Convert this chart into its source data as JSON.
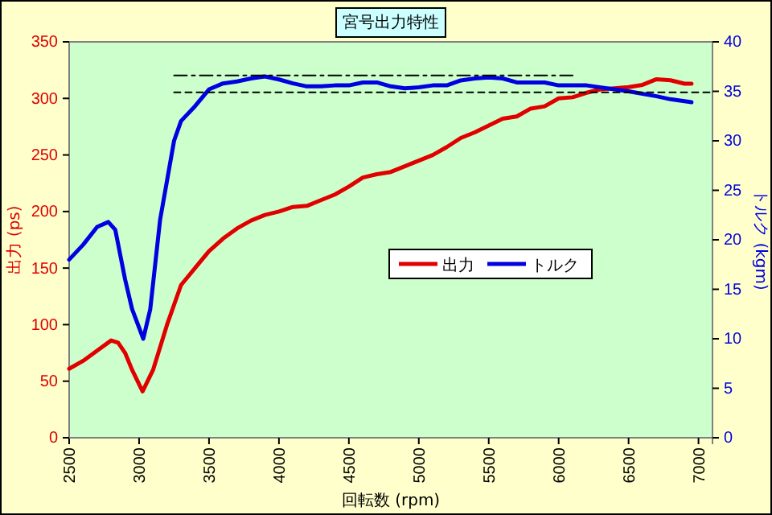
{
  "chart_data": {
    "type": "line",
    "title": "宮号出力特性",
    "xlabel": "回転数 (rpm)",
    "ylabel": "出力 (ps)",
    "y2label": "トルク (kgm)",
    "xlim": [
      2500,
      7100
    ],
    "xticks": [
      2500,
      3000,
      3500,
      4000,
      4500,
      5000,
      5500,
      6000,
      6500,
      7000
    ],
    "ylim": [
      0,
      350
    ],
    "yticks": [
      0,
      50,
      100,
      150,
      200,
      250,
      300,
      350
    ],
    "y2lim": [
      0,
      40
    ],
    "y2ticks": [
      0,
      5,
      10,
      15,
      20,
      25,
      30,
      35,
      40
    ],
    "grid": false,
    "legend": "right",
    "marker": "none",
    "series": [
      {
        "name": "出力",
        "color": "#e00000",
        "x": [
          2500,
          2600,
          2700,
          2800,
          2850,
          2900,
          2950,
          3025,
          3100,
          3200,
          3300,
          3400,
          3500,
          3600,
          3700,
          3800,
          3900,
          4000,
          4100,
          4200,
          4300,
          4400,
          4500,
          4600,
          4700,
          4800,
          4900,
          5000,
          5100,
          5200,
          5300,
          5400,
          5500,
          5600,
          5700,
          5800,
          5900,
          6000,
          6100,
          6200,
          6300,
          6400,
          6500,
          6600,
          6700,
          6800,
          6900,
          6950
        ],
        "values": [
          61,
          68,
          77,
          86,
          84,
          75,
          60,
          41,
          60,
          100,
          135,
          150,
          165,
          176,
          185,
          192,
          197,
          200,
          204,
          205,
          210,
          215,
          222,
          230,
          233,
          235,
          240,
          245,
          250,
          257,
          265,
          270,
          276,
          282,
          284,
          291,
          293,
          300,
          301,
          305,
          308,
          309,
          310,
          312,
          317,
          316,
          313,
          313
        ]
      },
      {
        "name": "トルク",
        "color": "#0000e0",
        "axis": "y2",
        "x": [
          2500,
          2600,
          2700,
          2780,
          2830,
          2900,
          2950,
          3030,
          3080,
          3150,
          3200,
          3250,
          3300,
          3400,
          3500,
          3600,
          3700,
          3800,
          3900,
          4000,
          4100,
          4200,
          4300,
          4400,
          4500,
          4600,
          4700,
          4800,
          4900,
          5000,
          5100,
          5200,
          5300,
          5400,
          5500,
          5600,
          5700,
          5800,
          5900,
          6000,
          6200,
          6400,
          6500,
          6700,
          6800,
          6950
        ],
        "values": [
          18,
          19.5,
          21.3,
          21.8,
          21,
          16,
          13,
          10,
          13,
          22,
          26,
          30,
          32,
          33.5,
          35.2,
          35.8,
          36,
          36.3,
          36.5,
          36.2,
          35.8,
          35.5,
          35.5,
          35.6,
          35.6,
          35.9,
          35.9,
          35.5,
          35.3,
          35.4,
          35.6,
          35.6,
          36.1,
          36.3,
          36.4,
          36.3,
          35.9,
          35.9,
          35.9,
          35.6,
          35.6,
          35.2,
          35,
          34.5,
          34.2,
          33.9
        ]
      },
      {
        "color": "#000000",
        "axis": "y2",
        "line_style": "dashdot",
        "x": [
          3250,
          6100
        ],
        "values": [
          36.6,
          36.6
        ]
      },
      {
        "color": "#000000",
        "axis": "y2",
        "line_style": "dashed",
        "x": [
          3250,
          7100
        ],
        "values": [
          34.9,
          34.9
        ]
      }
    ]
  }
}
